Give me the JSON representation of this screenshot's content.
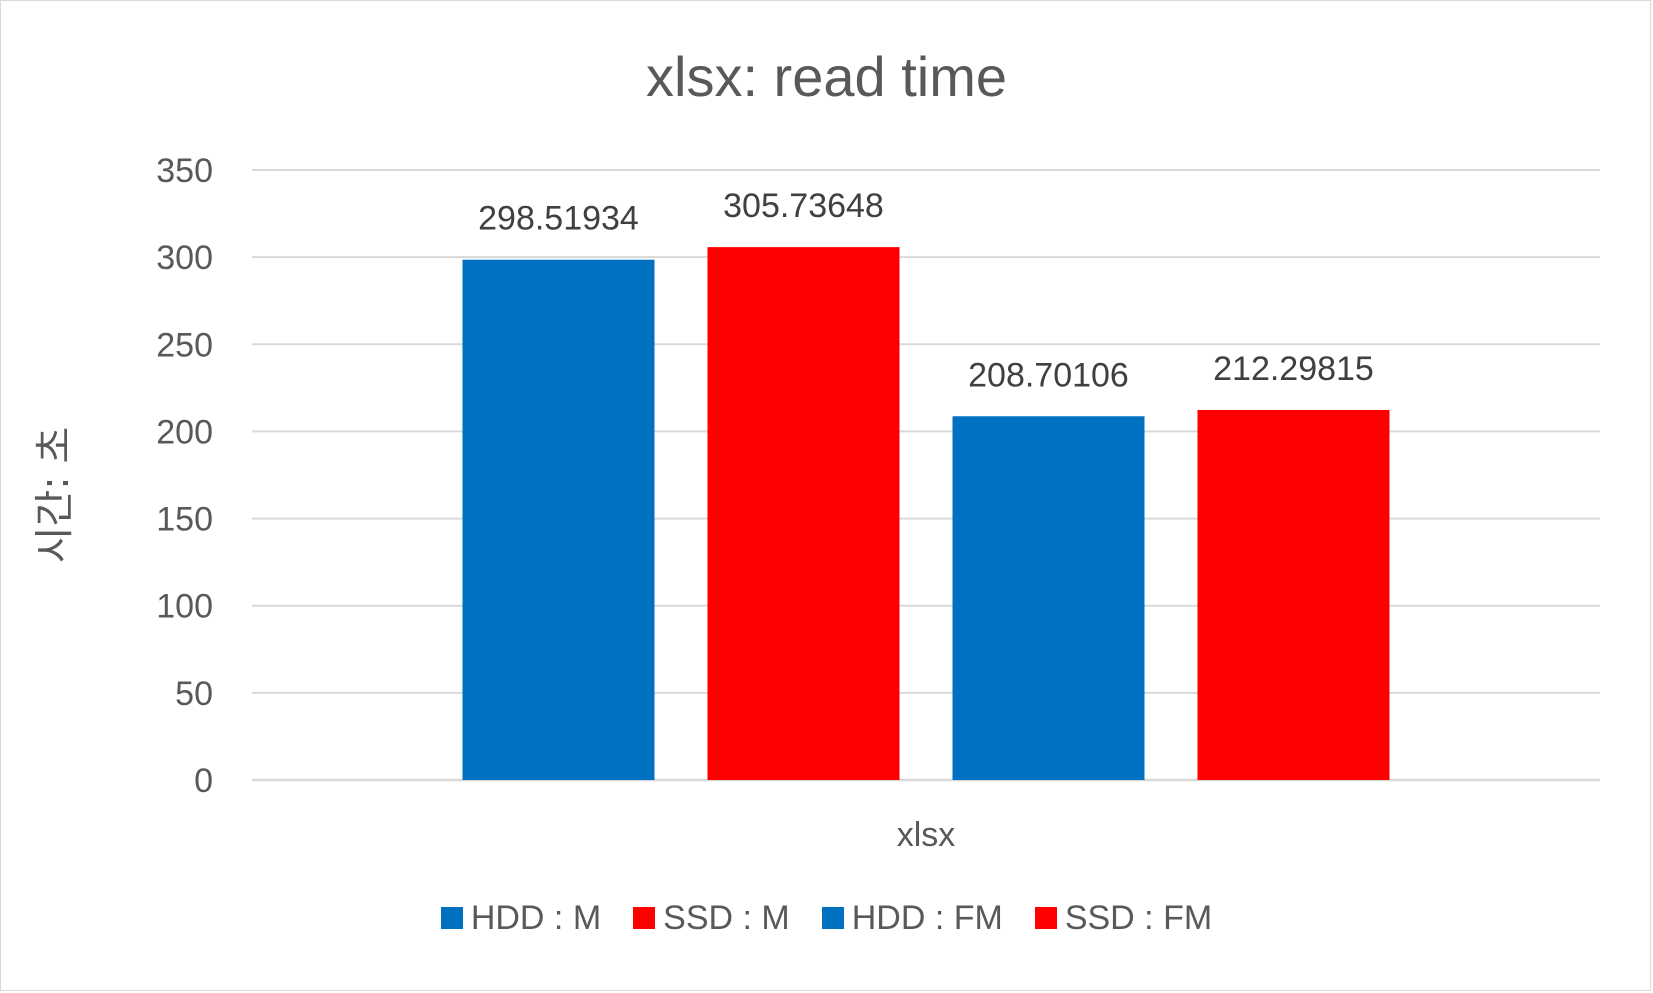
{
  "chart_data": {
    "type": "bar",
    "title": "xlsx: read time",
    "xlabel": "",
    "ylabel": "시간: 초",
    "categories": [
      "xlsx"
    ],
    "ylim": [
      0,
      350
    ],
    "yticks": [
      0,
      50,
      100,
      150,
      200,
      250,
      300,
      350
    ],
    "grid": true,
    "legend_position": "bottom",
    "series": [
      {
        "name": "HDD : M",
        "values": [
          298.51934
        ],
        "label": "298.51934",
        "color": "#0070C0"
      },
      {
        "name": "SSD : M",
        "values": [
          305.73648
        ],
        "label": "305.73648",
        "color": "#FF0000"
      },
      {
        "name": "HDD : FM",
        "values": [
          208.70106
        ],
        "label": "208.70106",
        "color": "#0070C0"
      },
      {
        "name": "SSD : FM",
        "values": [
          212.29815
        ],
        "label": "212.29815",
        "color": "#FF0000"
      }
    ]
  }
}
